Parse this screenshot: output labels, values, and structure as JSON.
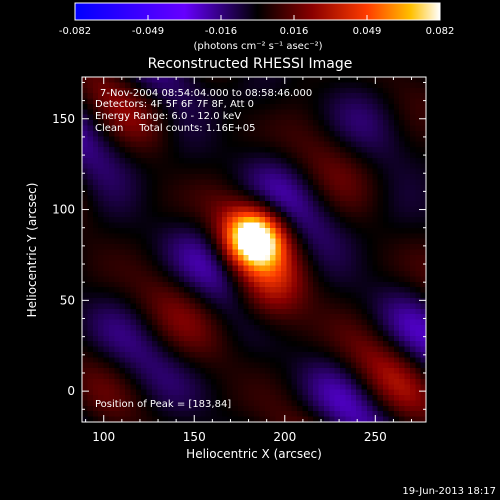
{
  "chart_data": {
    "type": "heatmap",
    "title": "Reconstructed RHESSI Image",
    "xlabel": "Heliocentric X (arcsec)",
    "ylabel": "Heliocentric Y (arcsec)",
    "xlim": [
      88,
      278
    ],
    "ylim": [
      -17,
      173
    ],
    "xticks": [
      100,
      150,
      200,
      250
    ],
    "yticks": [
      0,
      50,
      100,
      150
    ],
    "colorbar": {
      "range": [
        -0.082,
        0.082
      ],
      "ticks": [
        "-0.082",
        "-0.049",
        "-0.016",
        "0.016",
        "0.049",
        "0.082"
      ],
      "unit_label": "(photons cm⁻² s⁻¹ asec⁻²)"
    },
    "info_lines": [
      "7-Nov-2004 08:54:04.000 to 08:58:46.000",
      "Detectors: 4F 5F 6F 7F 8F, Att 0",
      "Energy Range: 6.0 - 12.0 keV",
      "Clean     Total counts: 1.16E+05"
    ],
    "peak_label": "Position of Peak = [183,84]",
    "peak": {
      "x": 183,
      "y": 84,
      "value": 0.082
    },
    "date_stamp": "19-Jun-2013 18:17"
  }
}
